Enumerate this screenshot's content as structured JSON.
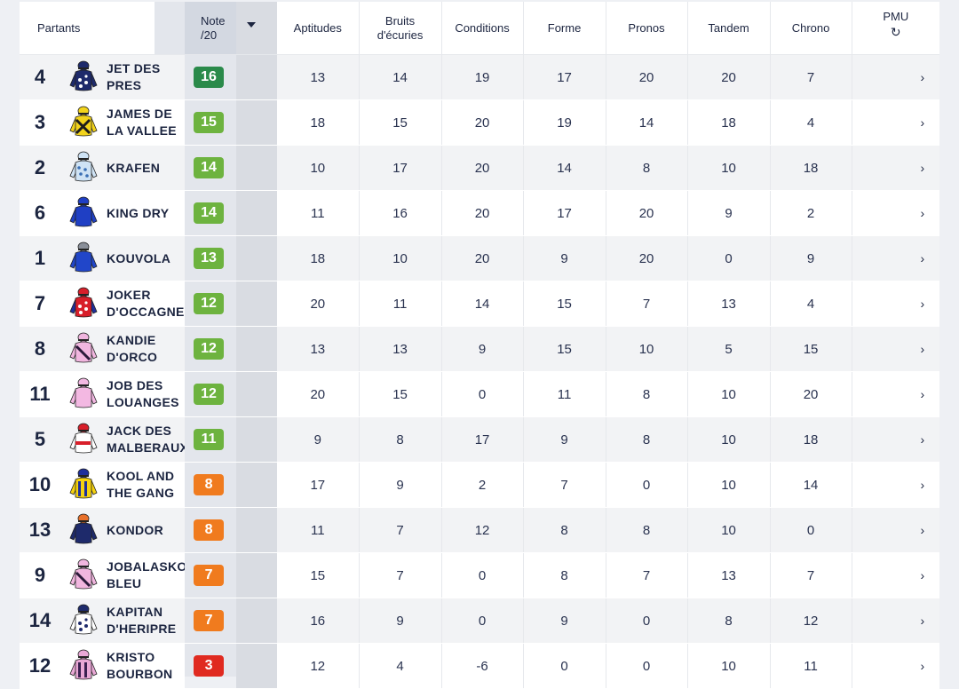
{
  "header": {
    "partants": "Partants",
    "note_line1": "Note",
    "note_line2": "/20",
    "aptitudes": "Aptitudes",
    "bruits_line1": "Bruits",
    "bruits_line2": "d'écuries",
    "conditions": "Conditions",
    "forme": "Forme",
    "pronos": "Pronos",
    "tandem": "Tandem",
    "chrono": "Chrono",
    "pmu": "PMU",
    "pmu_icon": "refresh-icon"
  },
  "colors": {
    "dark_green": "#2a8a4a",
    "green": "#6db33f",
    "orange": "#f07b1e",
    "red": "#e02a20"
  },
  "rows": [
    {
      "num": "4",
      "name": "JET DES PRES",
      "note": "16",
      "color": "#2a8a4a",
      "silk": "navy-stars",
      "vals": [
        "13",
        "14",
        "19",
        "17",
        "20",
        "20",
        "7"
      ]
    },
    {
      "num": "3",
      "name": "JAMES DE LA VALLEE",
      "note": "15",
      "color": "#6db33f",
      "silk": "yellow-cross",
      "vals": [
        "18",
        "15",
        "20",
        "19",
        "14",
        "18",
        "4"
      ]
    },
    {
      "num": "2",
      "name": "KRAFEN",
      "note": "14",
      "color": "#6db33f",
      "silk": "lightblue-dots",
      "vals": [
        "10",
        "17",
        "20",
        "14",
        "8",
        "10",
        "18"
      ]
    },
    {
      "num": "6",
      "name": "KING DRY",
      "note": "14",
      "color": "#6db33f",
      "silk": "blue",
      "vals": [
        "11",
        "16",
        "20",
        "17",
        "20",
        "9",
        "2"
      ]
    },
    {
      "num": "1",
      "name": "KOUVOLA",
      "note": "13",
      "color": "#6db33f",
      "silk": "blue-grey",
      "vals": [
        "18",
        "10",
        "20",
        "9",
        "20",
        "0",
        "9"
      ]
    },
    {
      "num": "7",
      "name": "JOKER D'OCCAGNES",
      "note": "12",
      "color": "#6db33f",
      "silk": "red-stars",
      "vals": [
        "20",
        "11",
        "14",
        "15",
        "7",
        "13",
        "4"
      ]
    },
    {
      "num": "8",
      "name": "KANDIE D'ORCO",
      "note": "12",
      "color": "#6db33f",
      "silk": "pink-sash",
      "vals": [
        "13",
        "13",
        "9",
        "15",
        "10",
        "5",
        "15"
      ]
    },
    {
      "num": "11",
      "name": "JOB DES LOUANGES",
      "note": "12",
      "color": "#6db33f",
      "silk": "pink",
      "vals": [
        "20",
        "15",
        "0",
        "11",
        "8",
        "10",
        "20"
      ]
    },
    {
      "num": "5",
      "name": "JACK DES MALBERAUX",
      "note": "11",
      "color": "#6db33f",
      "silk": "white-redband",
      "vals": [
        "9",
        "8",
        "17",
        "9",
        "8",
        "10",
        "18"
      ]
    },
    {
      "num": "10",
      "name": "KOOL AND THE GANG",
      "note": "8",
      "color": "#f07b1e",
      "silk": "yellow-blue-stripes",
      "vals": [
        "17",
        "9",
        "2",
        "7",
        "0",
        "10",
        "14"
      ]
    },
    {
      "num": "13",
      "name": "KONDOR",
      "note": "8",
      "color": "#f07b1e",
      "silk": "navy-orange",
      "vals": [
        "11",
        "7",
        "12",
        "8",
        "8",
        "10",
        "0"
      ]
    },
    {
      "num": "9",
      "name": "JOBALASKO BLEU",
      "note": "7",
      "color": "#f07b1e",
      "silk": "pink-sash",
      "vals": [
        "15",
        "7",
        "0",
        "8",
        "7",
        "13",
        "7"
      ]
    },
    {
      "num": "14",
      "name": "KAPITAN D'HERIPRE",
      "note": "7",
      "color": "#f07b1e",
      "silk": "white-navy-stars",
      "vals": [
        "16",
        "9",
        "0",
        "9",
        "0",
        "8",
        "12"
      ]
    },
    {
      "num": "12",
      "name": "KRISTO BOURBON",
      "note": "3",
      "color": "#e02a20",
      "silk": "pink-navy-stripes",
      "vals": [
        "12",
        "4",
        "-6",
        "0",
        "0",
        "10",
        "11"
      ]
    }
  ],
  "row_arrow": "›"
}
